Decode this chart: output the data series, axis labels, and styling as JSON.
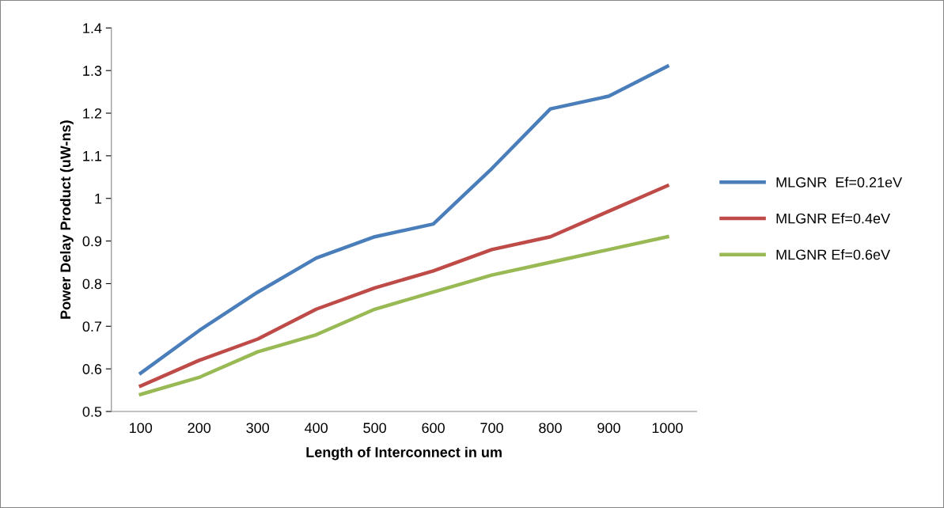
{
  "chart_data": {
    "type": "line",
    "xlabel": "Length of Interconnect in um",
    "ylabel": "Power Delay Product (uW-ns)",
    "categories": [
      "100",
      "200",
      "300",
      "400",
      "500",
      "600",
      "700",
      "800",
      "900",
      "1000"
    ],
    "series": [
      {
        "name": "MLGNR  Ef=0.21eV",
        "color": "#4a7ebb",
        "values": [
          0.59,
          0.69,
          0.78,
          0.86,
          0.91,
          0.94,
          1.07,
          1.21,
          1.24,
          1.31
        ]
      },
      {
        "name": "MLGNR Ef=0.4eV",
        "color": "#be4b48",
        "values": [
          0.56,
          0.62,
          0.67,
          0.74,
          0.79,
          0.83,
          0.88,
          0.91,
          0.97,
          1.03
        ]
      },
      {
        "name": "MLGNR Ef=0.6eV",
        "color": "#98b954",
        "values": [
          0.54,
          0.58,
          0.64,
          0.68,
          0.74,
          0.78,
          0.82,
          0.85,
          0.88,
          0.91
        ]
      }
    ],
    "ylim": [
      0.5,
      1.4
    ],
    "yticks": [
      0.5,
      0.6,
      0.7,
      0.8,
      0.9,
      1,
      1.1,
      1.2,
      1.3,
      1.4
    ],
    "grid": false,
    "legend": "right",
    "marker": "none",
    "line_style": "solid"
  }
}
